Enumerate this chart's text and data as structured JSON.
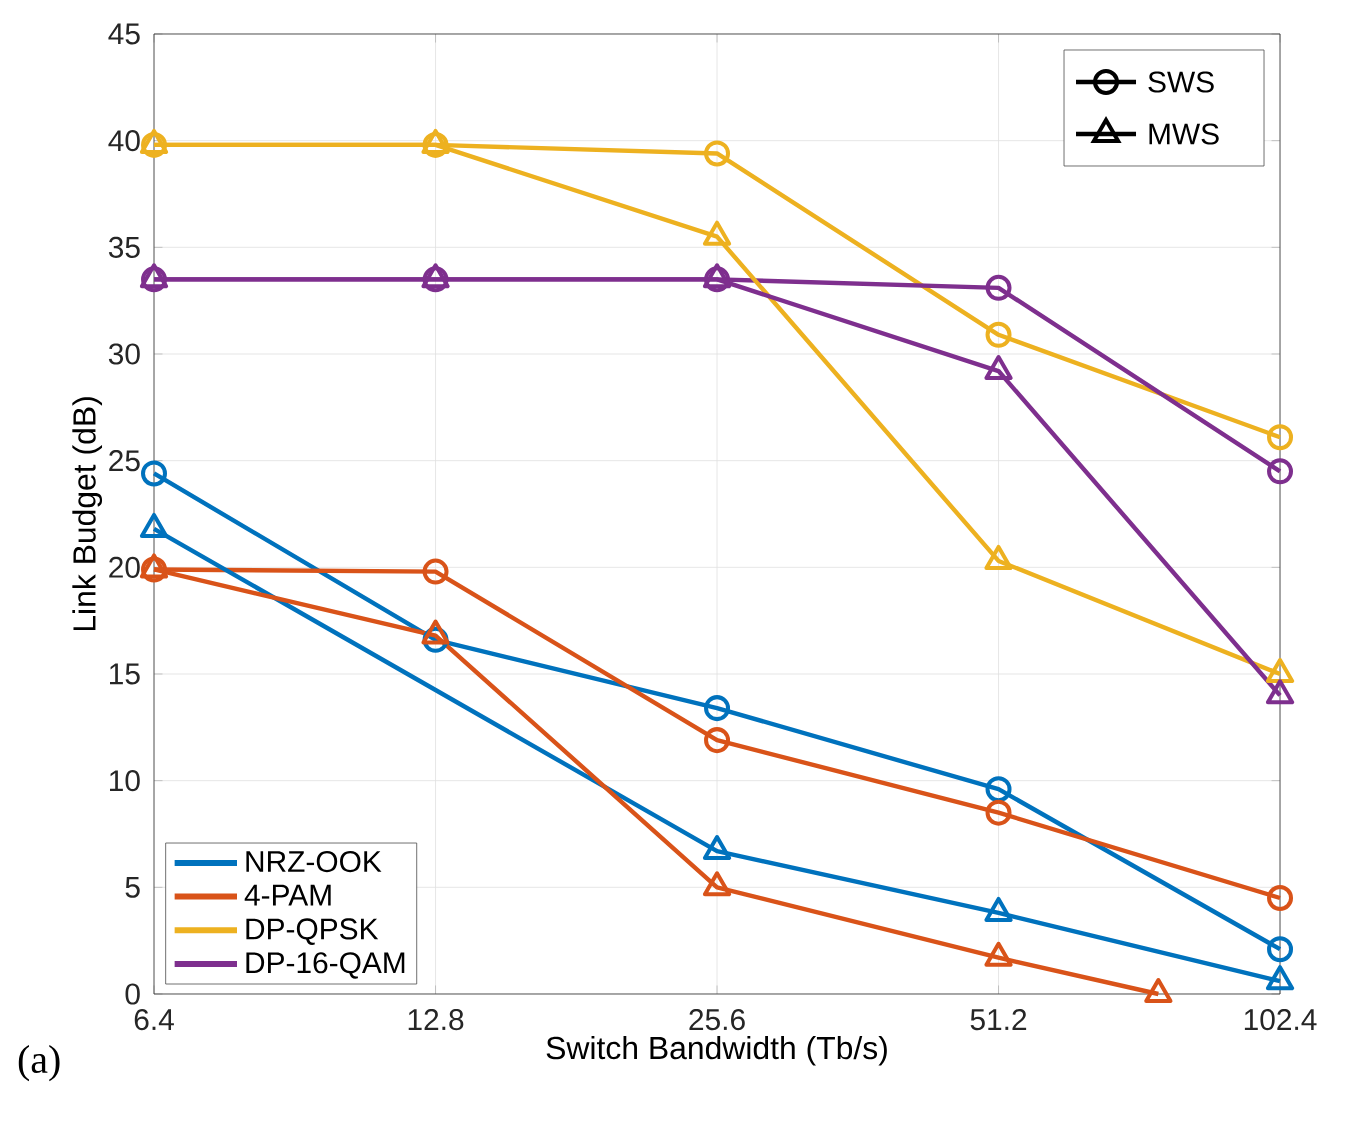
{
  "chart_data": {
    "type": "line",
    "xlabel": "Switch Bandwidth (Tb/s)",
    "ylabel": "Link Budget (dB)",
    "x": [
      6.4,
      12.8,
      25.6,
      51.2,
      102.4
    ],
    "series": [
      {
        "name": "NRZ-OOK",
        "color": "#0072bd",
        "marker": "circle",
        "values": [
          24.4,
          16.6,
          13.4,
          9.6,
          2.1
        ]
      },
      {
        "name": "4-PAM",
        "color": "#d95319",
        "marker": "circle",
        "values": [
          19.9,
          19.8,
          11.9,
          8.5,
          4.5
        ]
      },
      {
        "name": "DP-QPSK",
        "color": "#edb120",
        "marker": "circle",
        "values": [
          39.8,
          39.8,
          39.4,
          30.9,
          26.1
        ]
      },
      {
        "name": "DP-16-QAM",
        "color": "#7e2f8e",
        "marker": "circle",
        "values": [
          33.5,
          33.5,
          33.5,
          33.1,
          24.5
        ]
      },
      {
        "color": "#0072bd",
        "marker": "triangle",
        "values": [
          21.8,
          null,
          6.7,
          3.8,
          0.6
        ]
      },
      {
        "color": "#d95319",
        "marker": "triangle",
        "x": [
          6.4,
          12.8,
          25.6,
          51.2,
          75.9
        ],
        "values": [
          19.9,
          16.8,
          5.0,
          1.7,
          0
        ]
      },
      {
        "color": "#edb120",
        "marker": "triangle",
        "values": [
          39.8,
          39.8,
          35.5,
          20.3,
          15.0
        ]
      },
      {
        "color": "#7e2f8e",
        "marker": "triangle",
        "values": [
          33.5,
          33.5,
          33.5,
          29.2,
          14.0
        ]
      }
    ],
    "xlim": [
      6.4,
      102.4
    ],
    "ylim": [
      0,
      45
    ],
    "xticks": [
      6.4,
      12.8,
      25.6,
      51.2,
      102.4
    ],
    "yticks": [
      0,
      5,
      10,
      15,
      20,
      25,
      30,
      35,
      40,
      45
    ],
    "log": "x",
    "grid": true,
    "legend": "bottom left",
    "line_style": "solid",
    "annotations": [
      "SWS",
      "MWS",
      "(a)"
    ]
  }
}
